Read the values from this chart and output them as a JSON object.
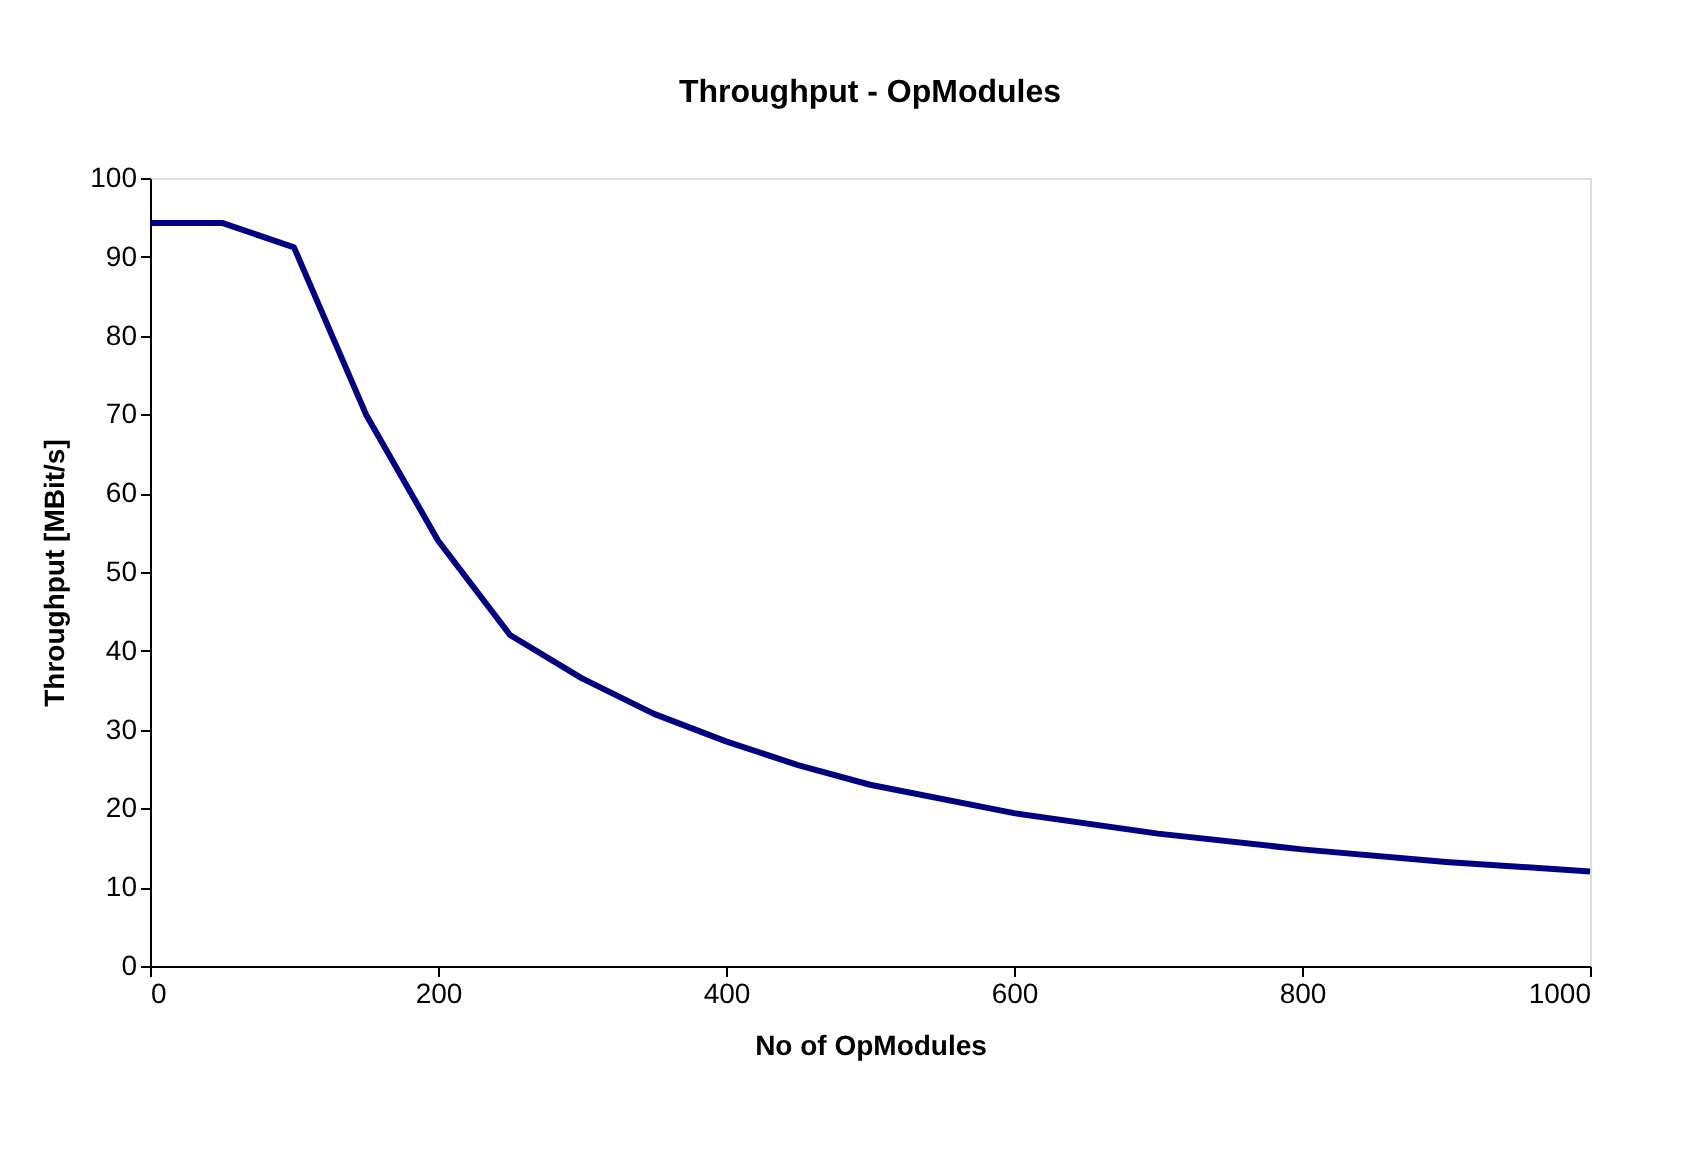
{
  "chart_data": {
    "type": "line",
    "title": "Throughput - OpModules",
    "xlabel": "No of OpModules",
    "ylabel": "Throughput [MBit/s]",
    "x": [
      0,
      50,
      100,
      150,
      200,
      250,
      300,
      350,
      400,
      450,
      500,
      600,
      700,
      800,
      900,
      1000
    ],
    "series": [
      {
        "color": "#000080",
        "values": [
          94.3,
          94.3,
          91.2,
          70,
          54,
          42,
          36.5,
          32,
          28.5,
          25.5,
          23,
          19.4,
          16.8,
          14.8,
          13.2,
          12
        ]
      }
    ],
    "xlim": [
      0,
      1000
    ],
    "xticks": [
      0,
      200,
      400,
      600,
      800,
      1000
    ],
    "ylim": [
      0,
      100
    ],
    "yticks": [
      0,
      10,
      20,
      30,
      40,
      50,
      60,
      70,
      80,
      90,
      100
    ],
    "grid": false,
    "legend": false,
    "marker": "none",
    "line_style": "solid"
  }
}
